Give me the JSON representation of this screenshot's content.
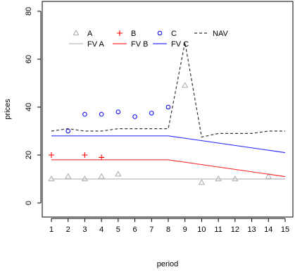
{
  "chart_data": {
    "type": "scatter",
    "title": "",
    "xlabel": "period",
    "ylabel": "prices",
    "xlim": [
      1,
      15
    ],
    "ylim": [
      0,
      80
    ],
    "x_ticks": [
      "1",
      "2",
      "3",
      "4",
      "5",
      "6",
      "7",
      "8",
      "9",
      "10",
      "11",
      "12",
      "13",
      "14",
      "15"
    ],
    "y_ticks": [
      "0",
      "20",
      "40",
      "60",
      "80"
    ],
    "grid": false,
    "legend_position": "top",
    "series": [
      {
        "name": "A",
        "kind": "points",
        "marker": "triangle",
        "color": "#aaaaaa",
        "points": [
          [
            1,
            10
          ],
          [
            2,
            11
          ],
          [
            3,
            10
          ],
          [
            4,
            11
          ],
          [
            5,
            12
          ],
          [
            9,
            49
          ],
          [
            10,
            8.5
          ],
          [
            11,
            10
          ],
          [
            12,
            10
          ],
          [
            14,
            11
          ]
        ]
      },
      {
        "name": "B",
        "kind": "points",
        "marker": "plus",
        "color": "#ff0000",
        "points": [
          [
            1,
            20
          ],
          [
            3,
            20
          ],
          [
            4,
            19
          ]
        ]
      },
      {
        "name": "C",
        "kind": "points",
        "marker": "circle",
        "color": "#0000ff",
        "points": [
          [
            2,
            30
          ],
          [
            3,
            37
          ],
          [
            4,
            37
          ],
          [
            5,
            38
          ],
          [
            6,
            36
          ],
          [
            7,
            37.5
          ],
          [
            8,
            40
          ]
        ]
      },
      {
        "name": "NAV",
        "kind": "line",
        "dash": "dashed",
        "color": "#333333",
        "points": [
          [
            1,
            30
          ],
          [
            2,
            31
          ],
          [
            3,
            30
          ],
          [
            4,
            30
          ],
          [
            5,
            31
          ],
          [
            6,
            31
          ],
          [
            7,
            31
          ],
          [
            8,
            31
          ],
          [
            9,
            67
          ],
          [
            10,
            27.5
          ],
          [
            11,
            29
          ],
          [
            12,
            29
          ],
          [
            13,
            29
          ],
          [
            14,
            30
          ],
          [
            15,
            30
          ]
        ]
      },
      {
        "name": "FV A",
        "kind": "line",
        "dash": "solid",
        "color": "#bbbbbb",
        "points": [
          [
            1,
            10
          ],
          [
            15,
            10
          ]
        ]
      },
      {
        "name": "FV B",
        "kind": "line",
        "dash": "solid",
        "color": "#ff3333",
        "points": [
          [
            1,
            18
          ],
          [
            8,
            18
          ],
          [
            15,
            11
          ]
        ]
      },
      {
        "name": "FV C",
        "kind": "line",
        "dash": "solid",
        "color": "#3333ff",
        "points": [
          [
            1,
            28
          ],
          [
            8,
            28
          ],
          [
            15,
            21
          ]
        ]
      }
    ]
  }
}
